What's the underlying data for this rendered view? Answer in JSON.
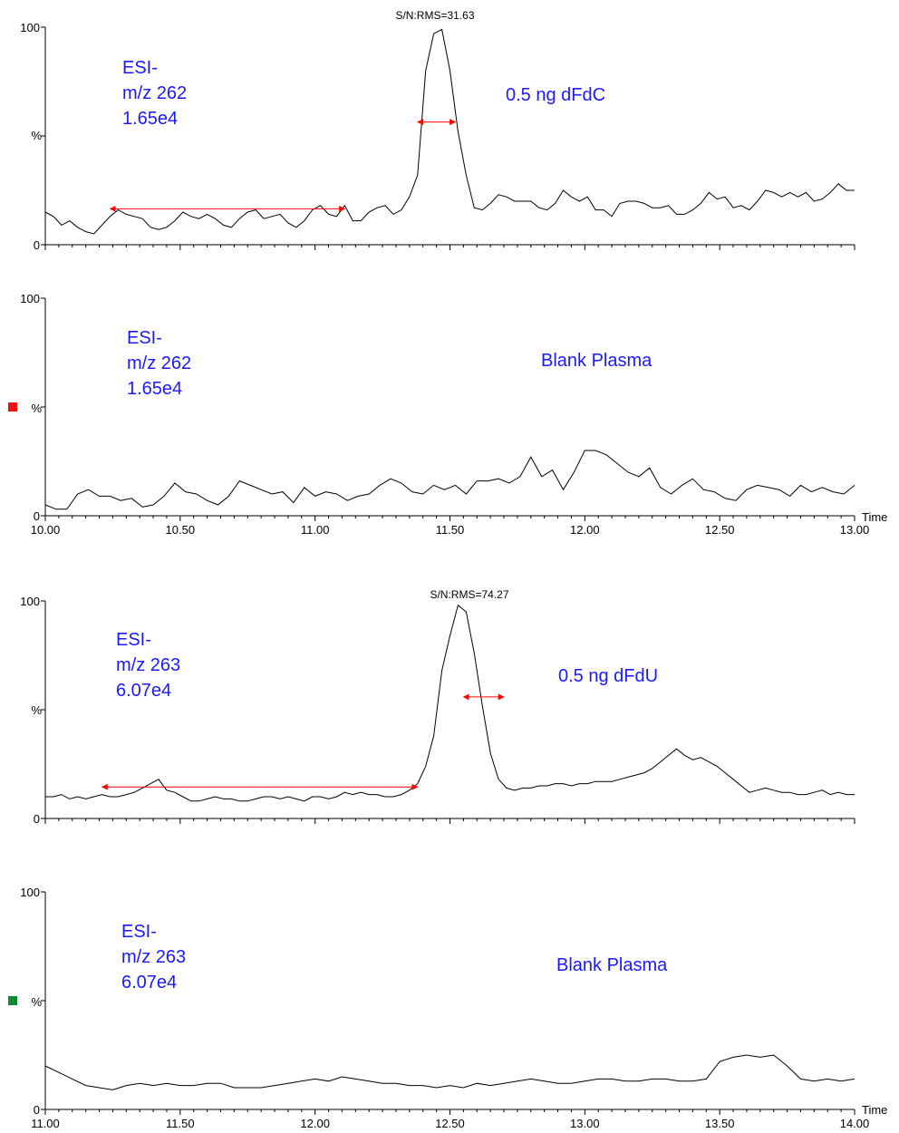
{
  "chart_data": [
    {
      "type": "line",
      "panel": "top-dFdC",
      "channel_lines": [
        "ESI-",
        "m/z 262",
        "1.65e4"
      ],
      "sample_label": "0.5 ng dFdC",
      "sn_label": "S/N:RMS=31.63",
      "ylabel": "%",
      "y_ticks": [
        "0",
        "100"
      ],
      "ylim": [
        0,
        100
      ],
      "xlim": [
        10.0,
        13.0
      ],
      "x_tick_labels_shown": false,
      "marker_color": "",
      "noise_interval": [
        10.24,
        11.11
      ],
      "peak_width_interval": [
        11.38,
        11.52
      ],
      "color_line": "#000000",
      "color_arrow": "#ff0000",
      "x": [
        10.0,
        10.03,
        10.06,
        10.09,
        10.12,
        10.15,
        10.18,
        10.21,
        10.24,
        10.27,
        10.3,
        10.33,
        10.36,
        10.39,
        10.42,
        10.45,
        10.48,
        10.51,
        10.54,
        10.57,
        10.6,
        10.63,
        10.66,
        10.69,
        10.72,
        10.75,
        10.78,
        10.81,
        10.84,
        10.87,
        10.9,
        10.93,
        10.96,
        10.99,
        11.02,
        11.05,
        11.08,
        11.11,
        11.14,
        11.17,
        11.2,
        11.23,
        11.26,
        11.29,
        11.32,
        11.35,
        11.38,
        11.41,
        11.44,
        11.47,
        11.5,
        11.53,
        11.56,
        11.59,
        11.62,
        11.65,
        11.68,
        11.71,
        11.74,
        11.77,
        11.8,
        11.83,
        11.86,
        11.89,
        11.92,
        11.95,
        11.98,
        12.01,
        12.04,
        12.07,
        12.1,
        12.13,
        12.16,
        12.19,
        12.22,
        12.25,
        12.28,
        12.31,
        12.34,
        12.37,
        12.4,
        12.43,
        12.46,
        12.49,
        12.52,
        12.55,
        12.58,
        12.61,
        12.64,
        12.67,
        12.7,
        12.73,
        12.76,
        12.79,
        12.82,
        12.85,
        12.88,
        12.91,
        12.94,
        12.97,
        13.0
      ],
      "y": [
        15,
        13,
        9,
        11,
        8,
        6,
        5,
        9,
        13,
        16,
        14,
        13,
        12,
        8,
        7,
        8,
        11,
        15,
        13,
        12,
        14,
        12,
        9,
        8,
        12,
        15,
        16,
        12,
        13,
        14,
        10,
        8,
        11,
        16,
        18,
        14,
        13,
        18,
        11,
        11,
        15,
        17,
        18,
        14,
        16,
        22,
        32,
        80,
        97,
        99,
        80,
        52,
        32,
        17,
        16,
        19,
        23,
        22,
        20,
        20,
        20,
        17,
        16,
        19,
        25,
        22,
        20,
        22,
        16,
        16,
        13,
        19,
        20,
        20,
        19,
        17,
        17,
        18,
        14,
        14,
        16,
        19,
        24,
        21,
        22,
        17,
        18,
        16,
        20,
        25,
        24,
        22,
        24,
        22,
        24,
        20,
        21,
        24,
        28,
        25,
        25
      ]
    },
    {
      "type": "line",
      "panel": "blank-262",
      "channel_lines": [
        "ESI-",
        "m/z 262",
        "1.65e4"
      ],
      "sample_label": "Blank Plasma",
      "sn_label": "",
      "ylabel": "%",
      "y_ticks": [
        "0",
        "100"
      ],
      "ylim": [
        0,
        100
      ],
      "xlim": [
        10.0,
        13.0
      ],
      "x_tick_labels_shown": true,
      "x_tick_labels": [
        "10.00",
        "10.50",
        "11.00",
        "11.50",
        "12.00",
        "12.50",
        "13.00"
      ],
      "x_axis_title": "Time",
      "marker_color": "#ee1111",
      "color_line": "#000000",
      "x": [
        10.0,
        10.04,
        10.08,
        10.12,
        10.16,
        10.2,
        10.24,
        10.28,
        10.32,
        10.36,
        10.4,
        10.44,
        10.48,
        10.52,
        10.56,
        10.6,
        10.64,
        10.68,
        10.72,
        10.76,
        10.8,
        10.84,
        10.88,
        10.92,
        10.96,
        11.0,
        11.04,
        11.08,
        11.12,
        11.16,
        11.2,
        11.24,
        11.28,
        11.32,
        11.36,
        11.4,
        11.44,
        11.48,
        11.52,
        11.56,
        11.6,
        11.64,
        11.68,
        11.72,
        11.76,
        11.8,
        11.84,
        11.88,
        11.92,
        11.96,
        12.0,
        12.04,
        12.08,
        12.12,
        12.16,
        12.2,
        12.24,
        12.28,
        12.32,
        12.36,
        12.4,
        12.44,
        12.48,
        12.52,
        12.56,
        12.6,
        12.64,
        12.68,
        12.72,
        12.76,
        12.8,
        12.84,
        12.88,
        12.92,
        12.96,
        13.0
      ],
      "y": [
        5,
        3,
        3,
        10,
        12,
        9,
        9,
        7,
        8,
        4,
        5,
        9,
        15,
        11,
        10,
        7,
        5,
        9,
        16,
        14,
        12,
        10,
        11,
        6,
        13,
        9,
        11,
        10,
        7,
        9,
        10,
        14,
        17,
        15,
        11,
        10,
        14,
        12,
        14,
        10,
        16,
        16,
        17,
        15,
        18,
        27,
        18,
        21,
        12,
        20,
        30,
        30,
        28,
        24,
        20,
        18,
        22,
        13,
        10,
        14,
        17,
        12,
        11,
        8,
        7,
        12,
        14,
        13,
        12,
        9,
        14,
        11,
        13,
        11,
        10,
        14
      ]
    },
    {
      "type": "line",
      "panel": "top-dFdU",
      "channel_lines": [
        "ESI-",
        "m/z 263",
        "6.07e4"
      ],
      "sample_label": "0.5 ng dFdU",
      "sn_label": "S/N:RMS=74.27",
      "ylabel": "%",
      "y_ticks": [
        "0",
        "100"
      ],
      "ylim": [
        0,
        100
      ],
      "xlim": [
        11.0,
        14.0
      ],
      "x_tick_labels_shown": false,
      "marker_color": "",
      "noise_interval": [
        11.21,
        12.38
      ],
      "peak_width_interval": [
        12.55,
        12.7
      ],
      "color_line": "#000000",
      "color_arrow": "#ff0000",
      "x": [
        11.0,
        11.03,
        11.06,
        11.09,
        11.12,
        11.15,
        11.18,
        11.21,
        11.24,
        11.27,
        11.3,
        11.33,
        11.36,
        11.39,
        11.42,
        11.45,
        11.48,
        11.51,
        11.54,
        11.57,
        11.6,
        11.63,
        11.66,
        11.69,
        11.72,
        11.75,
        11.78,
        11.81,
        11.84,
        11.87,
        11.9,
        11.93,
        11.96,
        11.99,
        12.02,
        12.05,
        12.08,
        12.11,
        12.14,
        12.17,
        12.2,
        12.23,
        12.26,
        12.29,
        12.32,
        12.35,
        12.38,
        12.41,
        12.44,
        12.47,
        12.5,
        12.53,
        12.56,
        12.59,
        12.62,
        12.65,
        12.68,
        12.71,
        12.74,
        12.77,
        12.8,
        12.83,
        12.86,
        12.89,
        12.92,
        12.95,
        12.98,
        13.01,
        13.04,
        13.07,
        13.1,
        13.13,
        13.16,
        13.19,
        13.22,
        13.25,
        13.28,
        13.31,
        13.34,
        13.37,
        13.4,
        13.43,
        13.46,
        13.49,
        13.52,
        13.55,
        13.58,
        13.61,
        13.64,
        13.67,
        13.7,
        13.73,
        13.76,
        13.79,
        13.82,
        13.85,
        13.88,
        13.91,
        13.94,
        13.97,
        14.0
      ],
      "y": [
        10,
        10,
        11,
        9,
        10,
        9,
        10,
        11,
        10,
        10,
        11,
        12,
        14,
        16,
        18,
        13,
        12,
        10,
        8,
        8,
        9,
        10,
        9,
        9,
        8,
        8,
        9,
        10,
        10,
        9,
        10,
        9,
        8,
        10,
        10,
        9,
        10,
        12,
        11,
        12,
        11,
        11,
        10,
        10,
        11,
        13,
        16,
        24,
        38,
        68,
        84,
        98,
        95,
        76,
        52,
        30,
        18,
        14,
        13,
        14,
        14,
        15,
        15,
        16,
        16,
        15,
        16,
        16,
        17,
        17,
        17,
        18,
        19,
        20,
        21,
        23,
        26,
        29,
        32,
        29,
        27,
        28,
        26,
        24,
        21,
        18,
        15,
        12,
        13,
        14,
        13,
        12,
        12,
        11,
        11,
        12,
        13,
        11,
        12,
        11,
        11
      ]
    },
    {
      "type": "line",
      "panel": "blank-263",
      "channel_lines": [
        "ESI-",
        "m/z 263",
        "6.07e4"
      ],
      "sample_label": "Blank Plasma",
      "sn_label": "",
      "ylabel": "%",
      "y_ticks": [
        "0",
        "100"
      ],
      "ylim": [
        0,
        100
      ],
      "xlim": [
        11.0,
        14.0
      ],
      "x_tick_labels_shown": true,
      "x_tick_labels": [
        "11.00",
        "11.50",
        "12.00",
        "12.50",
        "13.00",
        "13.50",
        "14.00"
      ],
      "x_axis_title": "Time",
      "marker_color": "#118833",
      "color_line": "#000000",
      "x": [
        11.0,
        11.05,
        11.1,
        11.15,
        11.2,
        11.25,
        11.3,
        11.35,
        11.4,
        11.45,
        11.5,
        11.55,
        11.6,
        11.65,
        11.7,
        11.75,
        11.8,
        11.85,
        11.9,
        11.95,
        12.0,
        12.05,
        12.1,
        12.15,
        12.2,
        12.25,
        12.3,
        12.35,
        12.4,
        12.45,
        12.5,
        12.55,
        12.6,
        12.65,
        12.7,
        12.75,
        12.8,
        12.85,
        12.9,
        12.95,
        13.0,
        13.05,
        13.1,
        13.15,
        13.2,
        13.25,
        13.3,
        13.35,
        13.4,
        13.45,
        13.5,
        13.55,
        13.6,
        13.65,
        13.7,
        13.75,
        13.8,
        13.85,
        13.9,
        13.95,
        14.0
      ],
      "y": [
        20,
        17,
        14,
        11,
        10,
        9,
        11,
        12,
        11,
        12,
        11,
        11,
        12,
        12,
        10,
        10,
        10,
        11,
        12,
        13,
        14,
        13,
        15,
        14,
        13,
        12,
        12,
        11,
        11,
        10,
        11,
        10,
        12,
        11,
        12,
        13,
        14,
        13,
        12,
        12,
        13,
        14,
        14,
        13,
        13,
        14,
        14,
        13,
        13,
        14,
        22,
        24,
        25,
        24,
        25,
        20,
        14,
        13,
        14,
        13,
        14
      ]
    }
  ]
}
